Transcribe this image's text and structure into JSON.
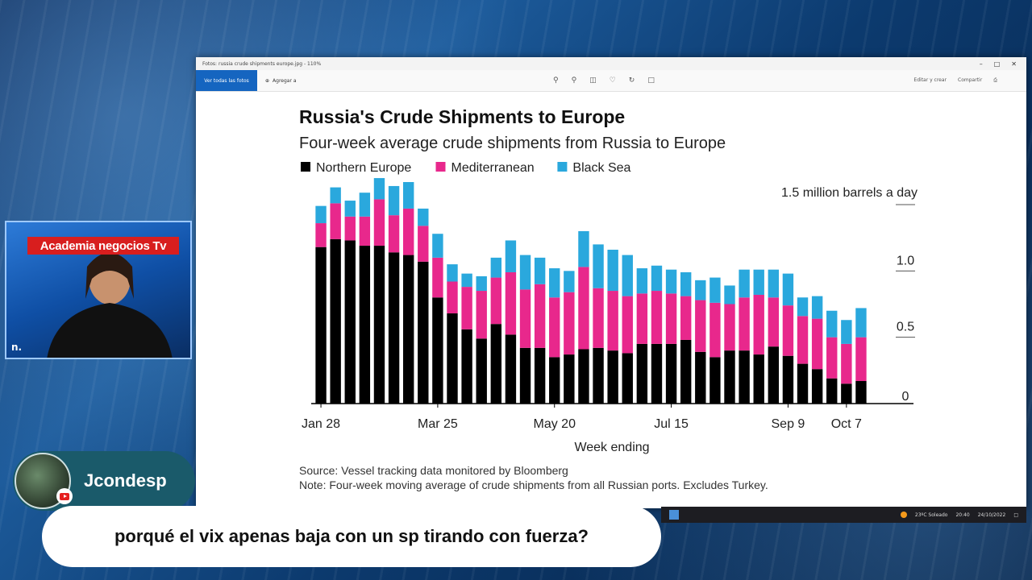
{
  "viewer": {
    "title": "Fotos: russia crude shipments europe.jpg - 110%",
    "toolbar": {
      "primary_label": "Ver todas las fotos",
      "add_label": "Agregar a",
      "right_labels": [
        "Editar y crear",
        "Compartir"
      ]
    },
    "icons": [
      "zoom-in-icon",
      "zoom-out-icon",
      "delete-icon",
      "favorite-icon",
      "rotate-icon",
      "crop-icon"
    ]
  },
  "chart_data": {
    "type": "bar",
    "stacked": true,
    "title": "Russia's Crude Shipments to Europe",
    "subtitle": "Four-week average crude shipments from Russia to Europe",
    "unit_label": "1.5 million barrels a day",
    "xlabel": "Week ending",
    "source": "Source: Vessel tracking data monitored by Bloomberg",
    "note": "Note: Four-week moving average of crude shipments from all Russian ports. Excludes Turkey.",
    "ylim": [
      0,
      1.5
    ],
    "yticks": [
      0,
      0.5,
      1.0
    ],
    "ytick_labels": [
      "0",
      "0.5",
      "1.0"
    ],
    "x_tick_labels": [
      {
        "label": "Jan 28",
        "index": 0
      },
      {
        "label": "Mar 25",
        "index": 8
      },
      {
        "label": "May 20",
        "index": 16
      },
      {
        "label": "Jul 15",
        "index": 24
      },
      {
        "label": "Sep 9",
        "index": 32
      },
      {
        "label": "Oct 7",
        "index": 36
      }
    ],
    "legend_position": "top-left",
    "series": [
      {
        "name": "Northern Europe",
        "color": "#000000",
        "values": [
          1.18,
          1.24,
          1.23,
          1.19,
          1.19,
          1.14,
          1.12,
          1.07,
          0.8,
          0.68,
          0.56,
          0.49,
          0.6,
          0.52,
          0.42,
          0.42,
          0.35,
          0.37,
          0.41,
          0.42,
          0.4,
          0.38,
          0.45,
          0.45,
          0.45,
          0.48,
          0.39,
          0.35,
          0.4,
          0.4,
          0.37,
          0.43,
          0.36,
          0.3,
          0.26,
          0.19,
          0.15,
          0.17
        ]
      },
      {
        "name": "Mediterranean",
        "color": "#e8288c",
        "values": [
          0.18,
          0.27,
          0.18,
          0.22,
          0.35,
          0.28,
          0.35,
          0.27,
          0.3,
          0.24,
          0.32,
          0.36,
          0.35,
          0.47,
          0.44,
          0.48,
          0.45,
          0.47,
          0.62,
          0.45,
          0.45,
          0.43,
          0.38,
          0.4,
          0.38,
          0.33,
          0.39,
          0.41,
          0.35,
          0.4,
          0.45,
          0.37,
          0.38,
          0.36,
          0.38,
          0.31,
          0.3,
          0.33
        ]
      },
      {
        "name": "Black Sea",
        "color": "#2aa8dd",
        "values": [
          0.13,
          0.12,
          0.12,
          0.18,
          0.16,
          0.22,
          0.2,
          0.13,
          0.18,
          0.13,
          0.1,
          0.11,
          0.15,
          0.24,
          0.26,
          0.2,
          0.22,
          0.16,
          0.27,
          0.33,
          0.31,
          0.31,
          0.19,
          0.19,
          0.18,
          0.18,
          0.15,
          0.19,
          0.14,
          0.21,
          0.19,
          0.21,
          0.24,
          0.14,
          0.17,
          0.2,
          0.18,
          0.22
        ]
      }
    ]
  },
  "webcam": {
    "banner": "Academia negocios Tv",
    "logo": "n."
  },
  "chat": {
    "username": "Jcondesp",
    "message": "porqué el vix apenas baja con un sp tirando con fuerza?"
  },
  "taskbar": {
    "weather": "23ºC Soleado",
    "time": "20:40",
    "date": "24/10/2022"
  }
}
